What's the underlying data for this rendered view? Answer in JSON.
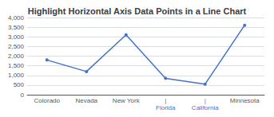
{
  "chart_data": {
    "type": "line",
    "title": "Highlight Horizontal Axis Data Points in a Line Chart",
    "categories": [
      "Colorado",
      "Nevada",
      "New York",
      "|\nFlorida",
      "|\nCalifornia",
      "Minnesota"
    ],
    "values": [
      1800,
      1200,
      3100,
      850,
      550,
      3600
    ],
    "color": "#4472C4",
    "marker": "circle",
    "ylim": [
      0,
      4000
    ],
    "yticks": [
      0,
      500,
      1000,
      1500,
      2000,
      2500,
      3000,
      3500,
      4000
    ],
    "grid": true
  }
}
